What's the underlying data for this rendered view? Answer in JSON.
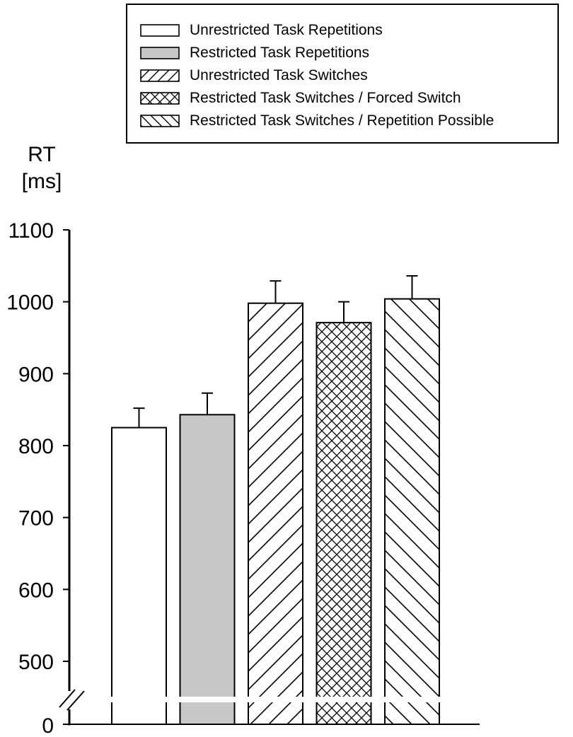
{
  "chart_data": {
    "type": "bar",
    "ylabel": [
      "RT",
      "[ms]"
    ],
    "y_ticks": [
      1100,
      1000,
      900,
      800,
      700,
      600,
      500
    ],
    "y_break_label": "0",
    "ylim": [
      450,
      1100
    ],
    "axis_break": true,
    "grid": false,
    "legend_position": "top-right",
    "series": [
      {
        "name": "Unrestricted Task Repetitions",
        "value": 825,
        "error": 27,
        "fill": "#ffffff",
        "pattern": "none"
      },
      {
        "name": "Restricted Task Repetitions",
        "value": 843,
        "error": 30,
        "fill": "#c8c8c8",
        "pattern": "none"
      },
      {
        "name": "Unrestricted Task Switches",
        "value": 998,
        "error": 31,
        "fill": "#ffffff",
        "pattern": "forward-diagonal"
      },
      {
        "name": "Restricted Task Switches / Forced Switch",
        "value": 971,
        "error": 29,
        "fill": "#ffffff",
        "pattern": "crosshatch"
      },
      {
        "name": "Restricted Task Switches / Repetition Possible",
        "value": 1004,
        "error": 32,
        "fill": "#ffffff",
        "pattern": "backward-diagonal"
      }
    ]
  }
}
